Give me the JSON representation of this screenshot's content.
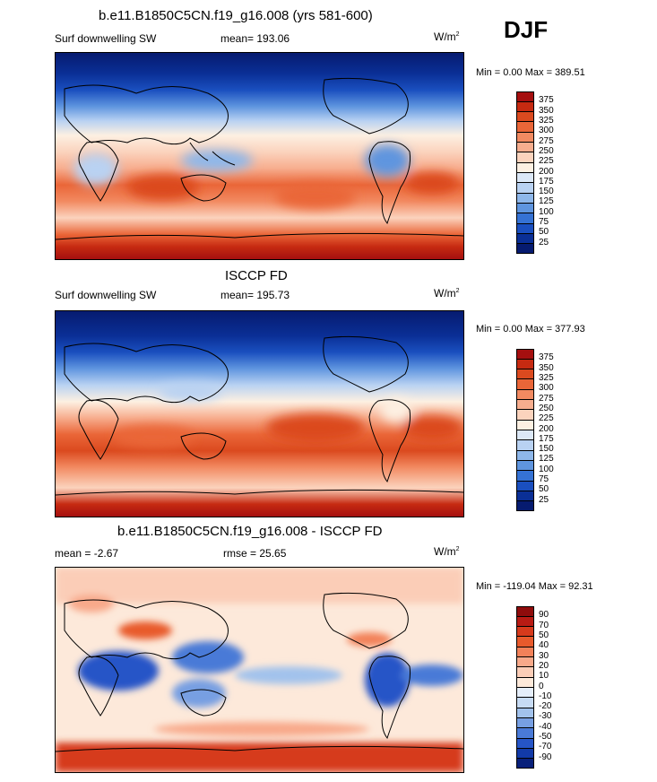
{
  "season": "DJF",
  "panels": [
    {
      "title": "b.e11.B1850C5CN.f19_g16.008 (yrs 581-600)",
      "left_label": "Surf downwelling SW",
      "center_label": "mean= 193.06",
      "units": "W/m",
      "units_sup": "2",
      "minmax": "Min =   0.00 Max = 389.51",
      "colorbar_levels": [
        "375",
        "350",
        "325",
        "300",
        "275",
        "250",
        "225",
        "200",
        "175",
        "150",
        "125",
        "100",
        "75",
        "50",
        "25"
      ],
      "colorbar_colors": [
        "#a50f0f",
        "#c62a11",
        "#db4a1f",
        "#ea6638",
        "#f28a61",
        "#f7ad8e",
        "#fbd3bd",
        "#fdf0e2",
        "#dce8f7",
        "#b9d2f2",
        "#8eb7ea",
        "#5f95df",
        "#3572d4",
        "#1a4fbf",
        "#0a2f96",
        "#061b70"
      ],
      "chart_data": {
        "type": "heatmap",
        "field": "Surface downwelling shortwave radiation",
        "season": "DJF",
        "mean": 193.06,
        "min": 0.0,
        "max": 389.51,
        "units": "W/m2",
        "contour_levels": [
          25,
          50,
          75,
          100,
          125,
          150,
          175,
          200,
          225,
          250,
          275,
          300,
          325,
          350,
          375
        ]
      }
    },
    {
      "title": "ISCCP FD",
      "left_label": "Surf downwelling SW",
      "center_label": "mean= 195.73",
      "units": "W/m",
      "units_sup": "2",
      "minmax": "Min =   0.00 Max = 377.93",
      "colorbar_levels": [
        "375",
        "350",
        "325",
        "300",
        "275",
        "250",
        "225",
        "200",
        "175",
        "150",
        "125",
        "100",
        "75",
        "50",
        "25"
      ],
      "colorbar_colors": [
        "#a50f0f",
        "#c62a11",
        "#db4a1f",
        "#ea6638",
        "#f28a61",
        "#f7ad8e",
        "#fbd3bd",
        "#fdf0e2",
        "#dce8f7",
        "#b9d2f2",
        "#8eb7ea",
        "#5f95df",
        "#3572d4",
        "#1a4fbf",
        "#0a2f96",
        "#061b70"
      ],
      "chart_data": {
        "type": "heatmap",
        "field": "Surface downwelling shortwave radiation (observations)",
        "season": "DJF",
        "mean": 195.73,
        "min": 0.0,
        "max": 377.93,
        "units": "W/m2",
        "contour_levels": [
          25,
          50,
          75,
          100,
          125,
          150,
          175,
          200,
          225,
          250,
          275,
          300,
          325,
          350,
          375
        ]
      }
    },
    {
      "title": "b.e11.B1850C5CN.f19_g16.008 - ISCCP FD",
      "left_label": "mean =  -2.67",
      "center_label": "rmse =  25.65",
      "units": "W/m",
      "units_sup": "2",
      "minmax": "Min = -119.04 Max =  92.31",
      "colorbar_levels": [
        "90",
        "70",
        "50",
        "40",
        "30",
        "20",
        "10",
        "0",
        "-10",
        "-20",
        "-30",
        "-40",
        "-50",
        "-70",
        "-90"
      ],
      "colorbar_colors": [
        "#8f0c0c",
        "#b81b14",
        "#d63a1c",
        "#e85a2c",
        "#f28159",
        "#f8a98a",
        "#fbcdb7",
        "#fde9da",
        "#e5eefa",
        "#c7dbf4",
        "#a2c2ec",
        "#779fe2",
        "#4a7ad7",
        "#2655c7",
        "#123aa8",
        "#08207a"
      ],
      "chart_data": {
        "type": "heatmap",
        "field": "Model minus observations difference",
        "season": "DJF",
        "mean": -2.67,
        "rmse": 25.65,
        "min": -119.04,
        "max": 92.31,
        "units": "W/m2",
        "contour_levels": [
          -90,
          -70,
          -50,
          -40,
          -30,
          -20,
          -10,
          0,
          10,
          20,
          30,
          40,
          50,
          70,
          90
        ]
      }
    }
  ]
}
